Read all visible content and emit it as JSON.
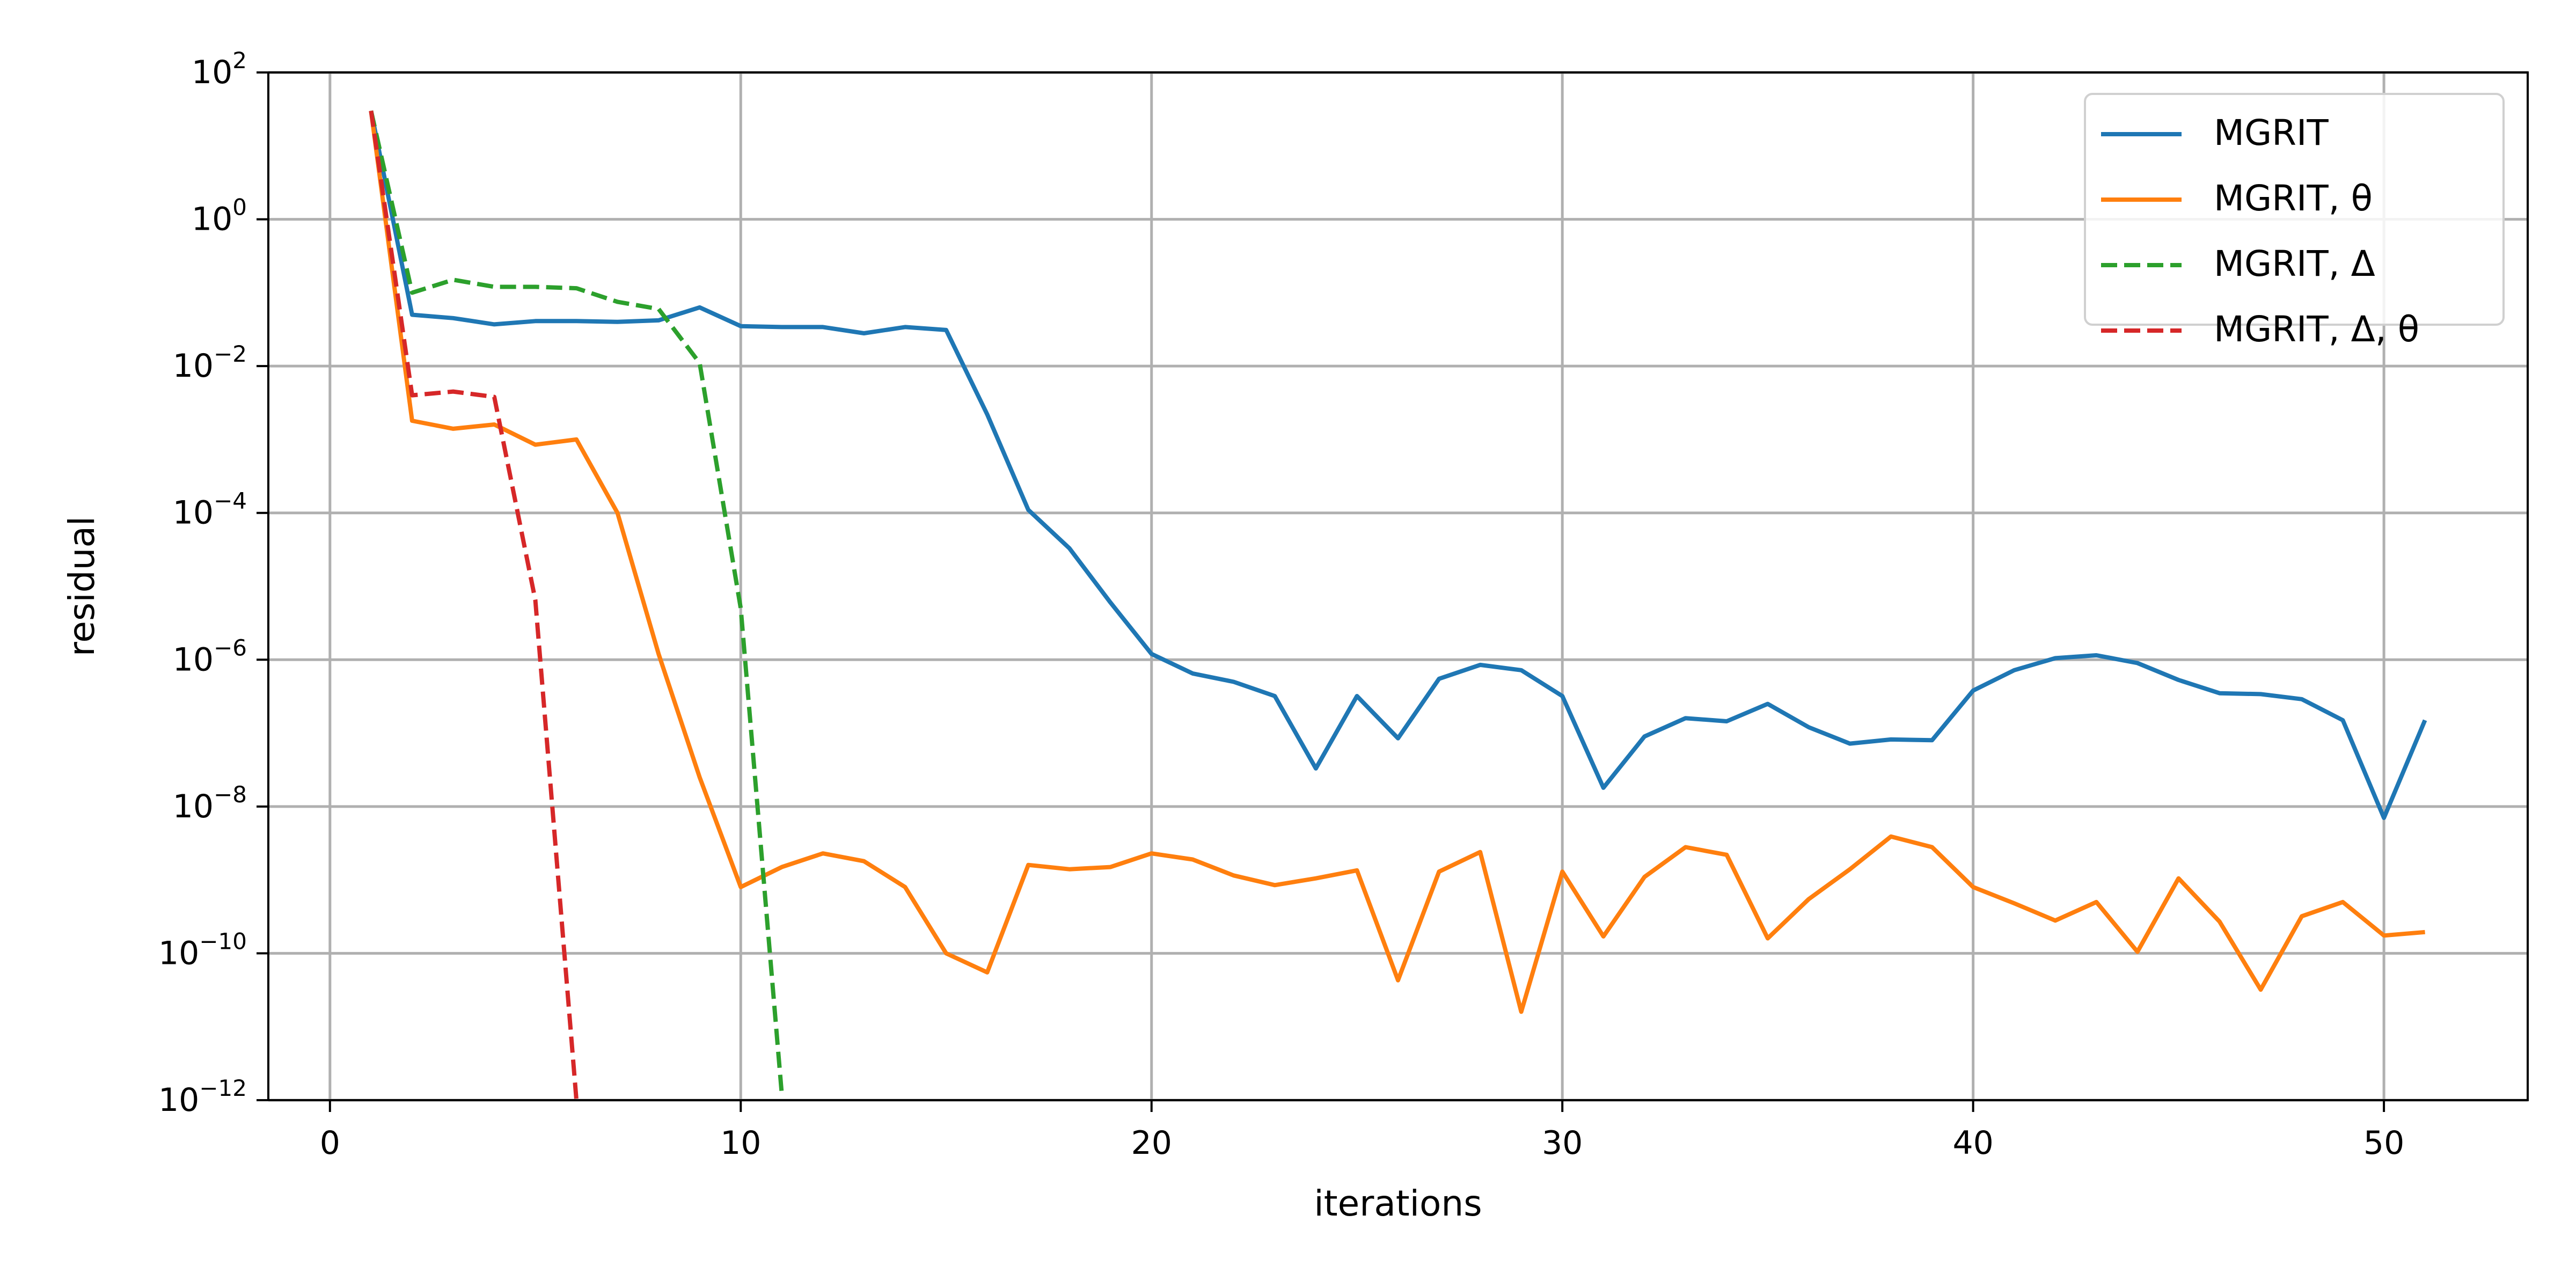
{
  "chart_data": {
    "type": "line",
    "xlabel": "iterations",
    "ylabel": "residual",
    "xlim": [
      -1.5,
      53.5
    ],
    "ylim": [
      1e-12,
      100
    ],
    "yscale": "log",
    "grid": true,
    "legend_position": "top-right",
    "x_ticks": [
      {
        "value": 0,
        "label": "0"
      },
      {
        "value": 10,
        "label": "10"
      },
      {
        "value": 20,
        "label": "20"
      },
      {
        "value": 30,
        "label": "30"
      },
      {
        "value": 40,
        "label": "40"
      },
      {
        "value": 50,
        "label": "50"
      }
    ],
    "y_ticks": [
      {
        "value": 100,
        "base": "10",
        "exp": "2"
      },
      {
        "value": 1,
        "base": "10",
        "exp": "0"
      },
      {
        "value": 0.01,
        "base": "10",
        "exp": "−2"
      },
      {
        "value": 0.0001,
        "base": "10",
        "exp": "−4"
      },
      {
        "value": 1e-06,
        "base": "10",
        "exp": "−6"
      },
      {
        "value": 1e-08,
        "base": "10",
        "exp": "−8"
      },
      {
        "value": 1e-10,
        "base": "10",
        "exp": "−10"
      },
      {
        "value": 1e-12,
        "base": "10",
        "exp": "−12"
      }
    ],
    "series": [
      {
        "name": "MGRIT",
        "color": "#1f77b4",
        "dash": "solid",
        "x": [
          1,
          2,
          3,
          4,
          5,
          6,
          7,
          8,
          9,
          10,
          11,
          12,
          13,
          14,
          15,
          16,
          17,
          18,
          19,
          20,
          21,
          22,
          23,
          24,
          25,
          26,
          27,
          28,
          29,
          30,
          31,
          32,
          33,
          34,
          35,
          36,
          37,
          38,
          39,
          40,
          41,
          42,
          43,
          44,
          45,
          46,
          47,
          48,
          49,
          50,
          51
        ],
        "y": [
          30,
          0.05,
          0.045,
          0.037,
          0.041,
          0.041,
          0.04,
          0.042,
          0.063,
          0.035,
          0.034,
          0.034,
          0.028,
          0.034,
          0.031,
          0.0022,
          0.00011,
          3.3e-05,
          6e-06,
          1.2e-06,
          6.5e-07,
          5e-07,
          3.2e-07,
          3.3e-08,
          3.2e-07,
          8.5e-08,
          5.5e-07,
          8.5e-07,
          7.2e-07,
          3.2e-07,
          1.8e-08,
          9e-08,
          1.6e-07,
          1.45e-07,
          2.5e-07,
          1.2e-07,
          7.2e-08,
          8.2e-08,
          8e-08,
          3.8e-07,
          7.2e-07,
          1.05e-06,
          1.15e-06,
          9e-07,
          5.3e-07,
          3.5e-07,
          3.4e-07,
          2.9e-07,
          1.5e-07,
          7e-09,
          1.5e-07
        ]
      },
      {
        "name": "MGRIT, θ",
        "color": "#ff7f0e",
        "dash": "solid",
        "x": [
          1,
          2,
          3,
          4,
          5,
          6,
          7,
          8,
          9,
          10,
          11,
          12,
          13,
          14,
          15,
          16,
          17,
          18,
          19,
          20,
          21,
          22,
          23,
          24,
          25,
          26,
          27,
          28,
          29,
          30,
          31,
          32,
          33,
          34,
          35,
          36,
          37,
          38,
          39,
          40,
          41,
          42,
          43,
          44,
          45,
          46,
          47,
          48,
          49,
          50,
          51
        ],
        "y": [
          30,
          0.0018,
          0.0014,
          0.0016,
          0.00085,
          0.001,
          0.0001,
          1.2e-06,
          2.5e-08,
          8e-10,
          1.5e-09,
          2.3e-09,
          1.8e-09,
          8e-10,
          1e-10,
          5.5e-11,
          1.6e-09,
          1.4e-09,
          1.5e-09,
          2.3e-09,
          1.9e-09,
          1.15e-09,
          8.5e-10,
          1.05e-09,
          1.35e-09,
          4.3e-11,
          1.3e-09,
          2.4e-09,
          1.6e-11,
          1.3e-09,
          1.7e-10,
          1.1e-09,
          2.8e-09,
          2.2e-09,
          1.6e-10,
          5.5e-10,
          1.4e-09,
          3.9e-09,
          2.8e-09,
          8e-10,
          4.8e-10,
          2.8e-10,
          5e-10,
          1.05e-10,
          1.05e-09,
          2.7e-10,
          3.2e-11,
          3.2e-10,
          5e-10,
          1.75e-10,
          1.95e-10
        ]
      },
      {
        "name": "MGRIT, Δ",
        "color": "#2ca02c",
        "dash": "dashed",
        "x": [
          1,
          2,
          3,
          4,
          5,
          6,
          7,
          8,
          9,
          10,
          11
        ],
        "y": [
          30,
          0.1,
          0.15,
          0.12,
          0.12,
          0.115,
          0.075,
          0.06,
          0.011,
          5e-06,
          1.2e-12
        ]
      },
      {
        "name": "MGRIT, Δ, θ",
        "color": "#d62728",
        "dash": "dashed",
        "x": [
          1,
          2,
          3,
          4,
          5,
          6
        ],
        "y": [
          30,
          0.004,
          0.0045,
          0.0038,
          6.5e-06,
          1e-12
        ]
      }
    ]
  }
}
